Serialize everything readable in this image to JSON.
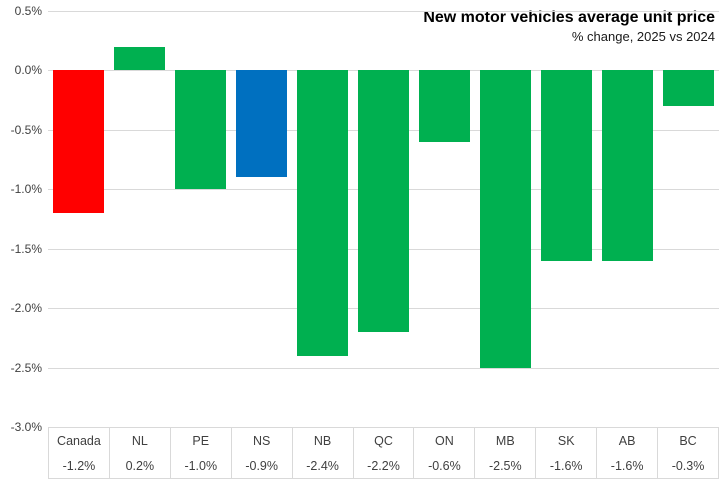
{
  "header": {
    "title": "New motor vehicles average unit price",
    "subtitle": "% change, 2025 vs 2024"
  },
  "chart_data": {
    "type": "bar",
    "title": "New motor vehicles average unit price",
    "subtitle": "% change, 2025 vs 2024",
    "categories": [
      "Canada",
      "NL",
      "PE",
      "NS",
      "NB",
      "QC",
      "ON",
      "MB",
      "SK",
      "AB",
      "BC"
    ],
    "values": [
      -1.2,
      0.2,
      -1.0,
      -0.9,
      -2.4,
      -2.2,
      -0.6,
      -2.5,
      -1.6,
      -1.6,
      -0.3
    ],
    "value_labels": [
      "-1.2%",
      "0.2%",
      "-1.0%",
      "-0.9%",
      "-2.4%",
      "-2.2%",
      "-0.6%",
      "-2.5%",
      "-1.6%",
      "-1.6%",
      "-0.3%"
    ],
    "bar_colors": [
      "#FF0000",
      "#00B050",
      "#00B050",
      "#0070C0",
      "#00B050",
      "#00B050",
      "#00B050",
      "#00B050",
      "#00B050",
      "#00B050",
      "#00B050"
    ],
    "ylim": [
      -3.0,
      0.5
    ],
    "ytick_step": 0.5,
    "ytick_labels": [
      "0.5%",
      "0.0%",
      "-0.5%",
      "-1.0%",
      "-1.5%",
      "-2.0%",
      "-2.5%",
      "-3.0%"
    ],
    "grid": true,
    "gridline_color": "#d9d9d9",
    "legend": false,
    "data_table": true,
    "highlight_colors": {
      "canada": "#FF0000",
      "nova_scotia": "#0070C0",
      "default": "#00B050"
    }
  }
}
